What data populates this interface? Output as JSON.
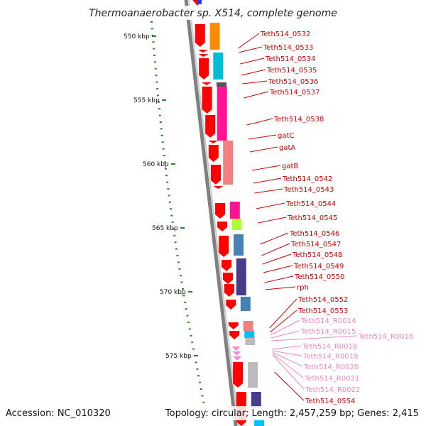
{
  "title": "Thermoanaerobacter sp. X514, complete genome",
  "footer": {
    "accession": "Accession: NC_010320",
    "topology": "Topology: circular; Length: 2,457,259 bp; Genes: 2,415"
  },
  "scale_labels": [
    "550 kbp",
    "555 kbp",
    "560 kbp",
    "565 kbp",
    "570 kbp",
    "575 kbp"
  ],
  "colors": {
    "gene_label": "#cc0000",
    "rna_label": "#ee88bb",
    "gc_skew_tick": "#228b22",
    "backbone": "#808080",
    "cds_arrow": "#ff0000",
    "rna_arrow": "#ff88cc"
  },
  "genes": [
    {
      "name": "Teth514_0532",
      "type": "cds",
      "cog": "#ff8c00"
    },
    {
      "name": "Teth514_0533",
      "type": "cds",
      "cog": "#00bcd4"
    },
    {
      "name": "Teth514_0534",
      "type": "cds",
      "cog": "#00bcd4"
    },
    {
      "name": "Teth514_0535",
      "type": "cds",
      "cog": "#00bcd4"
    },
    {
      "name": "Teth514_0536",
      "type": "cds",
      "cog": "#555555"
    },
    {
      "name": "Teth514_0537",
      "type": "cds",
      "cog": "#ff1493"
    },
    {
      "name": "Teth514_0538",
      "type": "cds",
      "cog": "#ff1493"
    },
    {
      "name": "gatC",
      "type": "cds",
      "cog": "#ff1493"
    },
    {
      "name": "gatA",
      "type": "cds",
      "cog": "#f08080"
    },
    {
      "name": "gatB",
      "type": "cds",
      "cog": "#f08080"
    },
    {
      "name": "Teth514_0542",
      "type": "cds",
      "cog": "#ffffff"
    },
    {
      "name": "Teth514_0543",
      "type": "cds",
      "cog": "#ffffff"
    },
    {
      "name": "Teth514_0544",
      "type": "cds",
      "cog": "#ff1493"
    },
    {
      "name": "Teth514_0545",
      "type": "cds",
      "cog": "#adff2f"
    },
    {
      "name": "Teth514_0546",
      "type": "cds",
      "cog": "#4682b4"
    },
    {
      "name": "Teth514_0547",
      "type": "cds",
      "cog": "#4682b4"
    },
    {
      "name": "Teth514_0548",
      "type": "cds",
      "cog": "#483d8b"
    },
    {
      "name": "Teth514_0549",
      "type": "cds",
      "cog": "#483d8b"
    },
    {
      "name": "Teth514_0550",
      "type": "cds",
      "cog": "#4682b4"
    },
    {
      "name": "rph",
      "type": "cds",
      "cog": "#4682b4"
    },
    {
      "name": "Teth514_0552",
      "type": "cds",
      "cog": "#f08080"
    },
    {
      "name": "Teth514_0553",
      "type": "cds",
      "cog": "#00bfff"
    },
    {
      "name": "Teth514_R0014",
      "type": "rna",
      "cog": ""
    },
    {
      "name": "Teth514_R0015",
      "type": "rna",
      "cog": ""
    },
    {
      "name": "Teth514_R0016",
      "type": "rna",
      "cog": ""
    },
    {
      "name": "Teth514_R0018",
      "type": "rna",
      "cog": ""
    },
    {
      "name": "Teth514_R0019",
      "type": "rna",
      "cog": ""
    },
    {
      "name": "Teth514_R0020",
      "type": "rna",
      "cog": ""
    },
    {
      "name": "Teth514_R0021",
      "type": "rna",
      "cog": ""
    },
    {
      "name": "Teth514_R0022",
      "type": "rna",
      "cog": ""
    },
    {
      "name": "Teth514_0554",
      "type": "cds",
      "cog": "#483d8b"
    }
  ]
}
